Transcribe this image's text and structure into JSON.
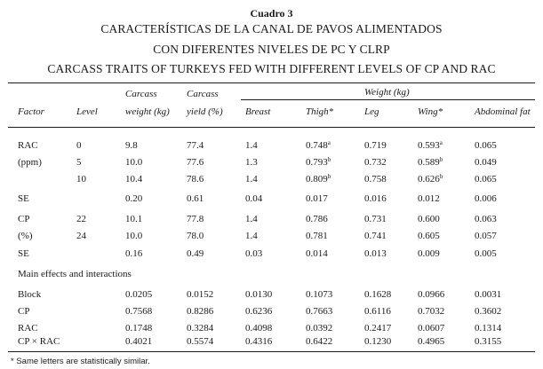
{
  "title": {
    "label": "Cuadro 3",
    "spanish_line1": "CARACTERÍSTICAS DE LA CANAL DE PAVOS ALIMENTADOS",
    "spanish_line2": "CON DIFERENTES NIVELES DE PC Y CLRP",
    "english": "CARCASS TRAITS OF TURKEYS FED WITH DIFFERENT LEVELS OF CP AND RAC"
  },
  "header": {
    "factor": "Factor",
    "level": "Level",
    "carcass_weight_1": "Carcass",
    "carcass_weight_2": "weight (kg)",
    "carcass_yield_1": "Carcass",
    "carcass_yield_2": "yield (%)",
    "weight_group": "Weight (kg)",
    "breast": "Breast",
    "thigh": "Thigh*",
    "leg": "Leg",
    "wing": "Wing*",
    "abdominal_fat": "Abdominal fat"
  },
  "rows": {
    "rac0": {
      "factor": "RAC",
      "level": "0",
      "cw": "9.8",
      "cy": "77.4",
      "breast": "1.4",
      "thigh": "0.748",
      "thigh_sup": "a",
      "leg": "0.719",
      "wing": "0.593",
      "wing_sup": "a",
      "fat": "0.065"
    },
    "rac5": {
      "factor": "(ppm)",
      "level": "5",
      "cw": "10.0",
      "cy": "77.6",
      "breast": "1.3",
      "thigh": "0.793",
      "thigh_sup": "b",
      "leg": "0.732",
      "wing": "0.589",
      "wing_sup": "b",
      "fat": "0.049"
    },
    "rac10": {
      "factor": "",
      "level": "10",
      "cw": "10.4",
      "cy": "78.6",
      "breast": "1.4",
      "thigh": "0.809",
      "thigh_sup": "b",
      "leg": "0.758",
      "wing": "0.626",
      "wing_sup": "b",
      "fat": "0.065"
    },
    "se1": {
      "factor": "SE",
      "cw": "0.20",
      "cy": "0.61",
      "breast": "0.04",
      "thigh": "0.017",
      "leg": "0.016",
      "wing": "0.012",
      "fat": "0.006"
    },
    "cp22": {
      "factor": "CP",
      "level": "22",
      "cw": "10.1",
      "cy": "77.8",
      "breast": "1.4",
      "thigh": "0.786",
      "leg": "0.731",
      "wing": "0.600",
      "fat": "0.063"
    },
    "cp24": {
      "factor": "(%)",
      "level": "24",
      "cw": "10.0",
      "cy": "78.0",
      "breast": "1.4",
      "thigh": "0.781",
      "leg": "0.741",
      "wing": "0.605",
      "fat": "0.057"
    },
    "se2": {
      "factor": "SE",
      "cw": "0.16",
      "cy": "0.49",
      "breast": "0.03",
      "thigh": "0.014",
      "leg": "0.013",
      "wing": "0.009",
      "fat": "0.005"
    },
    "main_effects": {
      "label": "Main effects and interactions"
    },
    "block": {
      "factor": "Block",
      "cw": "0.0205",
      "cy": "0.0152",
      "breast": "0.0130",
      "thigh": "0.1073",
      "leg": "0.1628",
      "wing": "0.0966",
      "fat": "0.0031"
    },
    "cp": {
      "factor": "CP",
      "cw": "0.7568",
      "cy": "0.8286",
      "breast": "0.6236",
      "thigh": "0.7663",
      "leg": "0.6116",
      "wing": "0.7032",
      "fat": "0.3602"
    },
    "rac": {
      "factor": "RAC",
      "cw": "0.1748",
      "cy": "0.3284",
      "breast": "0.4098",
      "thigh": "0.0392",
      "leg": "0.2417",
      "wing": "0.0607",
      "fat": "0.1314"
    },
    "cpxrac": {
      "factor": "CP × RAC",
      "cw": "0.4021",
      "cy": "0.5574",
      "breast": "0.4316",
      "thigh": "0.6422",
      "leg": "0.1230",
      "wing": "0.4965",
      "fat": "0.3155"
    }
  },
  "footnote": "* Same letters are statistically similar."
}
